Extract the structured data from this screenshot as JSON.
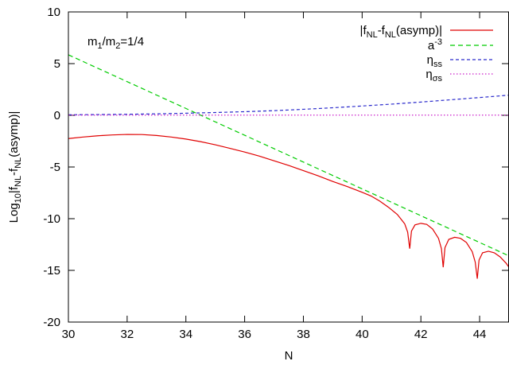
{
  "chart_data": {
    "type": "line",
    "xlabel": "N",
    "ylabel_parts": {
      "pre": "Log",
      "sub1": "10",
      "mid1": "|f",
      "sub2": "NL",
      "mid2": "-f",
      "sub3": "NL",
      "post": "(asymp)|"
    },
    "xlim": [
      30,
      45
    ],
    "ylim": [
      -20,
      10
    ],
    "xticks": [
      30,
      32,
      34,
      36,
      38,
      40,
      42,
      44
    ],
    "yticks": [
      10,
      5,
      0,
      -5,
      -10,
      -15,
      -20
    ],
    "annotation": {
      "parts": {
        "pre": "m",
        "sub1": "1",
        "mid": "/m",
        "sub2": "2",
        "post": "=1/4"
      }
    },
    "legend_position": "top-right",
    "series": [
      {
        "key": "fnl",
        "label_parts": {
          "pre": "|f",
          "sub1": "NL",
          "mid": "-f",
          "sub2": "NL",
          "post": "(asymp)|"
        },
        "color": "#e00000",
        "dash": "",
        "points": [
          [
            30,
            -2.25
          ],
          [
            30.5,
            -2.1
          ],
          [
            31,
            -1.98
          ],
          [
            31.5,
            -1.9
          ],
          [
            32,
            -1.85
          ],
          [
            32.5,
            -1.86
          ],
          [
            33,
            -1.95
          ],
          [
            33.5,
            -2.1
          ],
          [
            34,
            -2.3
          ],
          [
            34.5,
            -2.55
          ],
          [
            35,
            -2.85
          ],
          [
            35.5,
            -3.2
          ],
          [
            36,
            -3.55
          ],
          [
            36.5,
            -3.95
          ],
          [
            37,
            -4.4
          ],
          [
            37.5,
            -4.85
          ],
          [
            38,
            -5.35
          ],
          [
            38.5,
            -5.85
          ],
          [
            39,
            -6.4
          ],
          [
            39.5,
            -6.9
          ],
          [
            40,
            -7.45
          ],
          [
            40.3,
            -7.8
          ],
          [
            40.6,
            -8.3
          ],
          [
            40.9,
            -8.9
          ],
          [
            41.2,
            -9.6
          ],
          [
            41.45,
            -10.5
          ],
          [
            41.55,
            -11.3
          ],
          [
            41.62,
            -12.9
          ],
          [
            41.68,
            -11.2
          ],
          [
            41.8,
            -10.6
          ],
          [
            42,
            -10.45
          ],
          [
            42.2,
            -10.55
          ],
          [
            42.4,
            -11.0
          ],
          [
            42.6,
            -11.9
          ],
          [
            42.7,
            -12.9
          ],
          [
            42.76,
            -14.7
          ],
          [
            42.82,
            -12.8
          ],
          [
            42.95,
            -12.0
          ],
          [
            43.15,
            -11.8
          ],
          [
            43.35,
            -11.9
          ],
          [
            43.55,
            -12.3
          ],
          [
            43.75,
            -13.2
          ],
          [
            43.85,
            -14.2
          ],
          [
            43.92,
            -15.8
          ],
          [
            43.98,
            -14.0
          ],
          [
            44.1,
            -13.3
          ],
          [
            44.3,
            -13.15
          ],
          [
            44.5,
            -13.3
          ],
          [
            44.7,
            -13.7
          ],
          [
            44.9,
            -14.3
          ],
          [
            45,
            -14.7
          ]
        ]
      },
      {
        "key": "a3",
        "label_parts": {
          "pre": "a",
          "sup": "-3"
        },
        "color": "#00cc00",
        "dash": "6,4",
        "points": [
          [
            30,
            5.85
          ],
          [
            45,
            -13.6
          ]
        ]
      },
      {
        "key": "etass",
        "label_parts": {
          "pre": "η",
          "sub": "ss"
        },
        "color": "#2a2acc",
        "dash": "4,3",
        "points": [
          [
            30,
            0.05
          ],
          [
            31,
            0.07
          ],
          [
            32,
            0.1
          ],
          [
            33,
            0.14
          ],
          [
            34,
            0.2
          ],
          [
            35,
            0.27
          ],
          [
            36,
            0.35
          ],
          [
            37,
            0.45
          ],
          [
            38,
            0.58
          ],
          [
            39,
            0.73
          ],
          [
            40,
            0.9
          ],
          [
            41,
            1.08
          ],
          [
            42,
            1.28
          ],
          [
            43,
            1.5
          ],
          [
            44,
            1.72
          ],
          [
            45,
            1.95
          ]
        ]
      },
      {
        "key": "etasigmas",
        "label_parts": {
          "pre": "η",
          "sub": "σs"
        },
        "color": "#cc22cc",
        "dash": "1.5,2.5",
        "points": [
          [
            30,
            0.02
          ],
          [
            45,
            0.02
          ]
        ]
      }
    ]
  }
}
